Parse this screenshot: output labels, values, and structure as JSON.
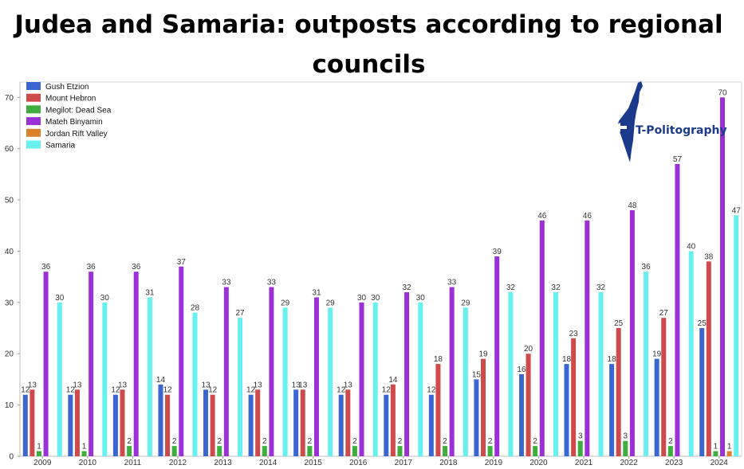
{
  "colors": {
    "Gush Etzion": "#3b66d1",
    "Mount Hebron": "#cf4a4a",
    "Megilot: Dead Sea": "#3fae3f",
    "Mateh Binyamin": "#9b30d6",
    "Jordan Rift Valley": "#d9822b",
    "Samaria": "#66f0f0",
    "logo": "#1b3a8c"
  },
  "logo": {
    "text": "T-Politography",
    "icon": "israel-map-icon"
  },
  "chart_data": {
    "type": "bar",
    "title": "Judea and Samaria: outposts according to regional councils",
    "xlabel": "",
    "ylabel": "",
    "ylim": [
      0,
      73
    ],
    "yticks": [
      0,
      10,
      20,
      30,
      40,
      50,
      60,
      70
    ],
    "grid": false,
    "legend": "top-left",
    "categories": [
      "2009",
      "2010",
      "2011",
      "2012",
      "2013",
      "2014",
      "2015",
      "2016",
      "2017",
      "2018",
      "2019",
      "2020",
      "2021",
      "2022",
      "2023",
      "2024"
    ],
    "series": [
      {
        "name": "Gush Etzion",
        "values": [
          12,
          12,
          12,
          14,
          13,
          12,
          13,
          12,
          12,
          12,
          15,
          16,
          18,
          18,
          19,
          25
        ]
      },
      {
        "name": "Mount Hebron",
        "values": [
          13,
          13,
          13,
          12,
          12,
          13,
          13,
          13,
          14,
          18,
          19,
          20,
          23,
          25,
          27,
          38
        ]
      },
      {
        "name": "Megilot: Dead Sea",
        "values": [
          1,
          1,
          2,
          2,
          2,
          2,
          2,
          2,
          2,
          2,
          2,
          2,
          3,
          3,
          2,
          1
        ]
      },
      {
        "name": "Mateh Binyamin",
        "values": [
          36,
          36,
          36,
          37,
          33,
          33,
          31,
          30,
          32,
          33,
          39,
          46,
          46,
          48,
          57,
          70
        ]
      },
      {
        "name": "Jordan Rift Valley",
        "values": [
          0,
          0,
          0,
          0,
          0,
          0,
          0,
          0,
          0,
          0,
          0,
          0,
          0,
          0,
          0,
          1
        ]
      },
      {
        "name": "Samaria",
        "values": [
          30,
          30,
          31,
          28,
          27,
          29,
          29,
          30,
          30,
          29,
          32,
          32,
          32,
          36,
          40,
          47
        ]
      }
    ]
  }
}
